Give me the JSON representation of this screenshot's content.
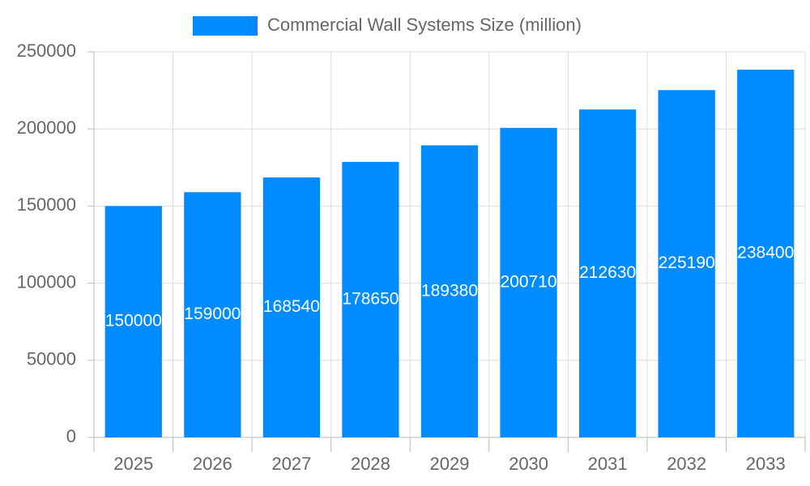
{
  "chart_data": {
    "type": "bar",
    "categories": [
      "2025",
      "2026",
      "2027",
      "2028",
      "2029",
      "2030",
      "2031",
      "2032",
      "2033"
    ],
    "series": [
      {
        "name": "Commercial Wall Systems Size (million)",
        "color": "#008cff",
        "values": [
          150000,
          159000,
          168540,
          178650,
          189380,
          200710,
          212630,
          225190,
          238400
        ]
      }
    ],
    "ylim": [
      0,
      250000
    ],
    "yticks": [
      0,
      50000,
      100000,
      150000,
      200000,
      250000
    ],
    "grid": true,
    "legend": "top",
    "data_labels": true
  }
}
